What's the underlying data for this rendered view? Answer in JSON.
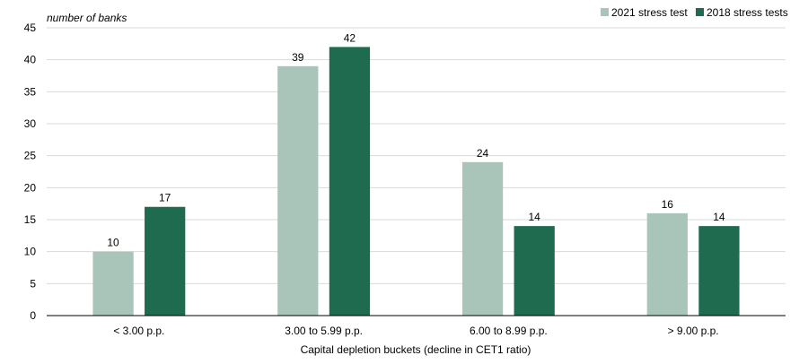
{
  "chart_data": {
    "type": "bar",
    "unit_label": "number of banks",
    "xlabel": "Capital depletion buckets (decline in CET1 ratio)",
    "ylabel": "",
    "ylim": [
      0,
      45
    ],
    "yticks": [
      0,
      5,
      10,
      15,
      20,
      25,
      30,
      35,
      40,
      45
    ],
    "grid": true,
    "legend_position": "top-right",
    "categories": [
      "< 3.00 p.p.",
      "3.00 to 5.99 p.p.",
      "6.00 to 8.99 p.p.",
      "> 9.00 p.p."
    ],
    "series": [
      {
        "name": "2021 stress test",
        "color": "#a9c4b8",
        "values": [
          10,
          39,
          24,
          16
        ]
      },
      {
        "name": "2018 stress tests",
        "color": "#1f6b50",
        "values": [
          17,
          42,
          14,
          14
        ]
      }
    ]
  }
}
